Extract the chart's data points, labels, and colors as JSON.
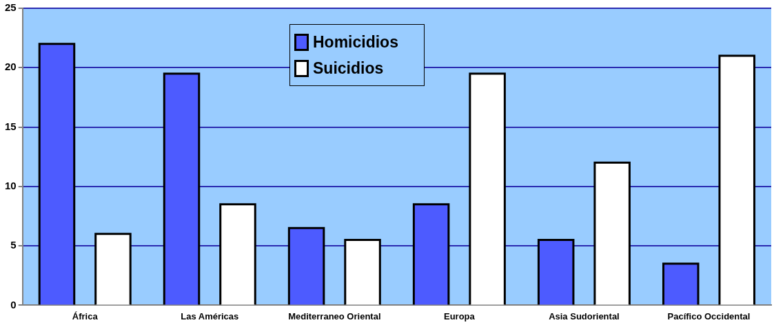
{
  "chart_data": {
    "type": "bar",
    "categories": [
      "África",
      "Las Américas",
      "Mediterraneo Oriental",
      "Europa",
      "Asia Sudoriental",
      "Pacífico Occidental"
    ],
    "series": [
      {
        "name": "Homicidios",
        "color": "#4d5bff",
        "values": [
          22,
          19.5,
          6.5,
          8.5,
          5.5,
          3.5
        ]
      },
      {
        "name": "Suicidios",
        "color": "#ffffff",
        "values": [
          6,
          8.5,
          5.5,
          19.5,
          12,
          21
        ]
      }
    ],
    "ylim": [
      0,
      25
    ],
    "yticks": [
      0,
      5,
      10,
      15,
      20,
      25
    ],
    "grid": "y",
    "legend": "top"
  }
}
